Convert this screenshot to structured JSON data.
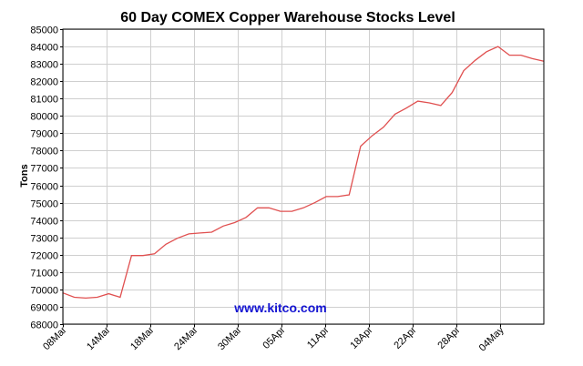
{
  "chart_data": {
    "type": "line",
    "title": "60 Day COMEX Copper Warehouse Stocks Level",
    "ylabel": "Tons",
    "xlabel": "",
    "watermark": "www.kitco.com",
    "ylim": [
      68000,
      85000
    ],
    "yticks": [
      68000,
      69000,
      70000,
      71000,
      72000,
      73000,
      74000,
      75000,
      76000,
      77000,
      78000,
      79000,
      80000,
      81000,
      82000,
      83000,
      84000,
      85000
    ],
    "x_tick_labels": [
      "08Mar",
      "14Mar",
      "18Mar",
      "24Mar",
      "30Mar",
      "05Apr",
      "11Apr",
      "18Apr",
      "22Apr",
      "28Apr",
      "04May"
    ],
    "grid": true,
    "line_color": "#e05050",
    "series": [
      {
        "values": [
          69800,
          69550,
          69500,
          69550,
          69750,
          69550,
          71950,
          71950,
          72050,
          72600,
          72950,
          73200,
          73250,
          73300,
          73650,
          73850,
          74150,
          74700,
          74700,
          74500,
          74500,
          74700,
          75000,
          75350,
          75350,
          75450,
          78250,
          78850,
          79350,
          80100,
          80450,
          80850,
          80750,
          80600,
          81350,
          82600,
          83200,
          83700,
          84000,
          83500,
          83500,
          83300,
          83150
        ]
      }
    ]
  }
}
